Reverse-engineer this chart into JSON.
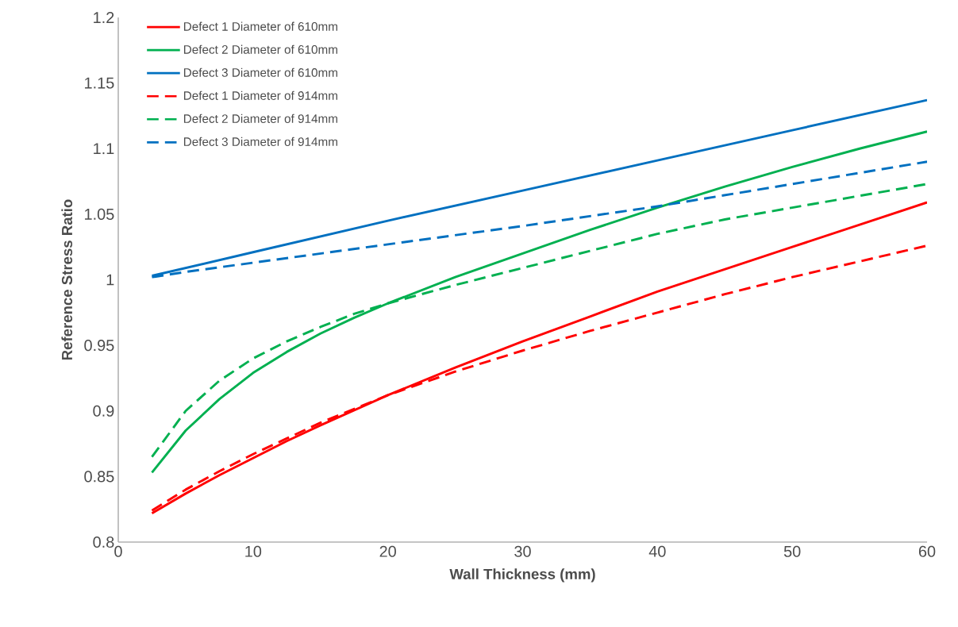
{
  "chart_data": {
    "type": "line",
    "xlabel": "Wall Thickness (mm)",
    "ylabel": "Reference Stress Ratio",
    "xlim": [
      0,
      60
    ],
    "ylim": [
      0.8,
      1.2
    ],
    "xticks": [
      0,
      10,
      20,
      30,
      40,
      50,
      60
    ],
    "yticks": [
      0.8,
      0.85,
      0.9,
      0.95,
      1,
      1.05,
      1.1,
      1.15,
      1.2
    ],
    "grid": false,
    "legend": "top left",
    "marker": "none",
    "series": [
      {
        "name": "Defect 1 Diameter of 610mm",
        "color": "#ff0000",
        "line_style": "solid",
        "x": [
          2.5,
          5,
          7.5,
          10,
          12.5,
          15,
          20,
          25,
          30,
          35,
          40,
          45,
          50,
          55,
          60
        ],
        "values": [
          0.822,
          0.837,
          0.851,
          0.864,
          0.877,
          0.889,
          0.912,
          0.933,
          0.953,
          0.972,
          0.991,
          1.008,
          1.025,
          1.042,
          1.059
        ]
      },
      {
        "name": "Defect 2 Diameter of 610mm",
        "color": "#00b050",
        "line_style": "solid",
        "x": [
          2.5,
          5,
          7.5,
          10,
          12.5,
          15,
          17.5,
          20,
          25,
          30,
          35,
          40,
          45,
          50,
          55,
          60
        ],
        "values": [
          0.853,
          0.885,
          0.909,
          0.929,
          0.945,
          0.959,
          0.971,
          0.982,
          1.002,
          1.02,
          1.038,
          1.055,
          1.071,
          1.086,
          1.1,
          1.113
        ]
      },
      {
        "name": "Defect 3 Diameter of 610mm",
        "color": "#0070c0",
        "line_style": "solid",
        "x": [
          2.5,
          5,
          10,
          20,
          30,
          40,
          50,
          60
        ],
        "values": [
          1.003,
          1.009,
          1.021,
          1.045,
          1.068,
          1.091,
          1.114,
          1.137
        ]
      },
      {
        "name": "Defect 1 Diameter of 914mm",
        "color": "#ff0000",
        "line_style": "dashed",
        "x": [
          2.5,
          5,
          7.5,
          10,
          12.5,
          15,
          20,
          25,
          30,
          35,
          40,
          45,
          50,
          55,
          60
        ],
        "values": [
          0.824,
          0.84,
          0.854,
          0.867,
          0.879,
          0.891,
          0.912,
          0.93,
          0.946,
          0.961,
          0.975,
          0.989,
          1.002,
          1.014,
          1.026
        ]
      },
      {
        "name": "Defect 2 Diameter of 914mm",
        "color": "#00b050",
        "line_style": "dashed",
        "x": [
          2.5,
          5,
          7.5,
          10,
          12.5,
          15,
          17.5,
          20,
          25,
          30,
          35,
          40,
          45,
          50,
          55,
          60
        ],
        "values": [
          0.865,
          0.9,
          0.923,
          0.94,
          0.953,
          0.964,
          0.974,
          0.982,
          0.996,
          1.009,
          1.022,
          1.035,
          1.046,
          1.055,
          1.064,
          1.073
        ]
      },
      {
        "name": "Defect 3 Diameter of 914mm",
        "color": "#0070c0",
        "line_style": "dashed",
        "x": [
          2.5,
          5,
          10,
          20,
          30,
          40,
          50,
          60
        ],
        "values": [
          1.002,
          1.006,
          1.013,
          1.027,
          1.041,
          1.056,
          1.073,
          1.09
        ]
      }
    ]
  }
}
